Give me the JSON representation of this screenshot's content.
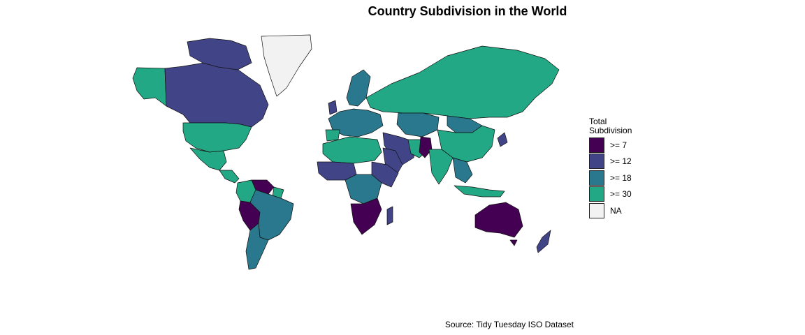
{
  "title": "Country Subdivision in the World",
  "caption": "Source: Tidy Tuesday ISO Dataset",
  "legend": {
    "title_line1": "Total",
    "title_line2": "Subdivision",
    "items": [
      {
        "label": ">= 7",
        "color": "#440154"
      },
      {
        "label": ">= 12",
        "color": "#414487"
      },
      {
        "label": ">= 18",
        "color": "#2A788E"
      },
      {
        "label": ">= 30",
        "color": "#22A884"
      },
      {
        "label": "NA",
        "color": "#F2F2F2"
      }
    ]
  },
  "regions": [
    {
      "name": "alaska",
      "bin": ">= 30"
    },
    {
      "name": "canada",
      "bin": ">= 12"
    },
    {
      "name": "usa",
      "bin": ">= 30"
    },
    {
      "name": "mexico",
      "bin": ">= 30"
    },
    {
      "name": "greenland",
      "bin": "NA"
    },
    {
      "name": "colombia",
      "bin": ">= 30"
    },
    {
      "name": "venezuela",
      "bin": ">= 7"
    },
    {
      "name": "brazil",
      "bin": ">= 18"
    },
    {
      "name": "peru",
      "bin": ">= 7"
    },
    {
      "name": "argentina",
      "bin": ">= 18"
    },
    {
      "name": "europe",
      "bin": ">= 18"
    },
    {
      "name": "russia",
      "bin": ">= 30"
    },
    {
      "name": "kazakhstan",
      "bin": ">= 18"
    },
    {
      "name": "china",
      "bin": ">= 30"
    },
    {
      "name": "india",
      "bin": ">= 30"
    },
    {
      "name": "pakistan",
      "bin": ">= 7"
    },
    {
      "name": "middle-east",
      "bin": ">= 12"
    },
    {
      "name": "north-africa",
      "bin": ">= 30"
    },
    {
      "name": "west-africa",
      "bin": ">= 12"
    },
    {
      "name": "central-africa",
      "bin": ">= 18"
    },
    {
      "name": "east-africa",
      "bin": ">= 12"
    },
    {
      "name": "southern-africa",
      "bin": ">= 7"
    },
    {
      "name": "madagascar",
      "bin": ">= 12"
    },
    {
      "name": "southeast-asia",
      "bin": ">= 18"
    },
    {
      "name": "indonesia",
      "bin": ">= 30"
    },
    {
      "name": "australia",
      "bin": ">= 7"
    },
    {
      "name": "new-zealand",
      "bin": ">= 12"
    }
  ]
}
